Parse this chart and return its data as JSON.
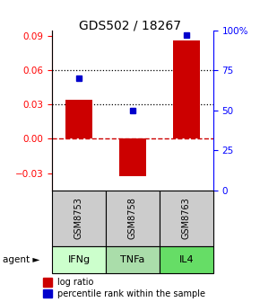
{
  "title": "GDS502 / 18267",
  "samples": [
    "GSM8753",
    "GSM8758",
    "GSM8763"
  ],
  "agents": [
    "IFNg",
    "TNFa",
    "IL4"
  ],
  "log_ratios": [
    0.034,
    -0.033,
    0.086
  ],
  "percentile_ranks": [
    0.7,
    0.5,
    0.97
  ],
  "bar_color": "#cc0000",
  "dot_color": "#0000cc",
  "ylim_left": [
    -0.045,
    0.095
  ],
  "ylim_right": [
    0.0,
    1.0
  ],
  "yticks_left": [
    -0.03,
    0,
    0.03,
    0.06,
    0.09
  ],
  "yticks_right": [
    0,
    0.25,
    0.5,
    0.75,
    1.0
  ],
  "ytick_labels_right": [
    "0",
    "25",
    "50",
    "75",
    "100%"
  ],
  "dotted_hlines": [
    0.06,
    0.03
  ],
  "zero_hline_color": "#cc0000",
  "gsm_bg": "#cccccc",
  "agent_colors": [
    "#ccffcc",
    "#aaddaa",
    "#66dd66"
  ],
  "bar_width": 0.5,
  "legend_bar_color": "#cc0000",
  "legend_dot_color": "#0000cc"
}
